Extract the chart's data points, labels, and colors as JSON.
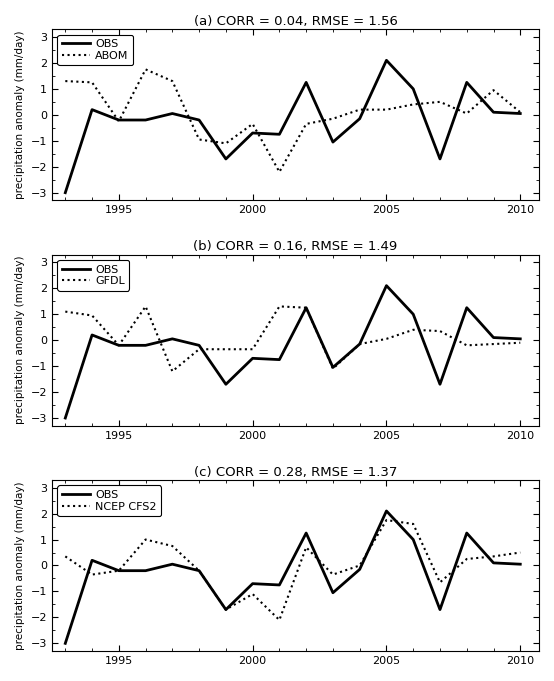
{
  "years": [
    1993,
    1994,
    1995,
    1996,
    1997,
    1998,
    1999,
    2000,
    2001,
    2002,
    2003,
    2004,
    2005,
    2006,
    2007,
    2008,
    2009,
    2010
  ],
  "obs": [
    -3.0,
    0.2,
    -0.2,
    -0.2,
    0.05,
    -0.2,
    -1.7,
    -0.7,
    -0.75,
    1.25,
    -1.05,
    -0.15,
    2.1,
    1.0,
    -1.7,
    1.25,
    0.1,
    0.05
  ],
  "abom": [
    1.3,
    1.25,
    -0.25,
    1.75,
    1.3,
    -0.95,
    -1.1,
    -0.35,
    -2.2,
    -0.35,
    -0.15,
    0.2,
    0.2,
    0.4,
    0.5,
    0.05,
    0.95,
    0.1
  ],
  "gfdl": [
    1.1,
    0.95,
    -0.2,
    1.3,
    -1.2,
    -0.35,
    -0.35,
    -0.35,
    1.3,
    1.25,
    -1.1,
    -0.15,
    0.05,
    0.4,
    0.35,
    -0.2,
    -0.15,
    -0.1
  ],
  "ncep": [
    0.35,
    -0.35,
    -0.2,
    1.0,
    0.75,
    -0.2,
    -1.7,
    -1.1,
    -2.1,
    0.7,
    -0.35,
    0.0,
    1.75,
    1.6,
    -0.65,
    0.25,
    0.35,
    0.5
  ],
  "titles": [
    "(a) CORR = 0.04, RMSE = 1.56",
    "(b) CORR = 0.16, RMSE = 1.49",
    "(c) CORR = 0.28, RMSE = 1.37"
  ],
  "model_labels": [
    "ABOM",
    "GFDL",
    "NCEP CFS2"
  ],
  "ylabel": "precipitation anomaly (mm/day)",
  "ylim": [
    -3.3,
    3.3
  ],
  "yticks": [
    -3,
    -2,
    -1,
    0,
    1,
    2,
    3
  ],
  "xlim": [
    1992.5,
    2010.7
  ],
  "xticks": [
    1995,
    2000,
    2005,
    2010
  ]
}
